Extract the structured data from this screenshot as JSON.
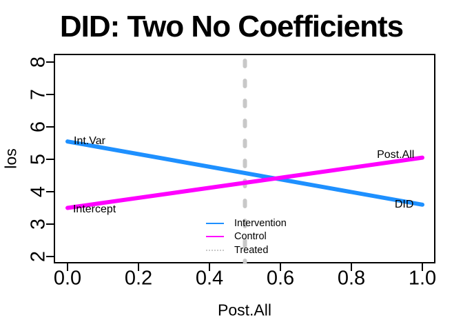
{
  "title": "DID: Two No Coefficients",
  "colors": {
    "intervention": "#1E90FF",
    "control": "#FF00FF",
    "treated": "#C8C8C8",
    "axis": "#000000",
    "background": "#FFFFFF"
  },
  "chart_data": {
    "type": "line",
    "title": "DID: Two No Coefficients",
    "xlabel": "Post.All",
    "ylabel": "los",
    "xlim": [
      -0.04,
      1.04
    ],
    "ylim": [
      1.76,
      8.24
    ],
    "grid": false,
    "x_ticks": [
      {
        "value": 0.0,
        "label": "0.0"
      },
      {
        "value": 0.2,
        "label": "0.2"
      },
      {
        "value": 0.4,
        "label": "0.4"
      },
      {
        "value": 0.6,
        "label": "0.6"
      },
      {
        "value": 0.8,
        "label": "0.8"
      },
      {
        "value": 1.0,
        "label": "1.0"
      }
    ],
    "y_ticks": [
      {
        "value": 8,
        "label": "8"
      },
      {
        "value": 7,
        "label": "7"
      },
      {
        "value": 6,
        "label": "6"
      },
      {
        "value": 5,
        "label": "5"
      },
      {
        "value": 4,
        "label": "4"
      },
      {
        "value": 3,
        "label": "3"
      },
      {
        "value": 2,
        "label": "2"
      }
    ],
    "series": [
      {
        "name": "Intervention",
        "color": "#1E90FF",
        "style": "solid",
        "line_width": 6,
        "x": [
          0,
          1
        ],
        "y": [
          5.55,
          3.6
        ]
      },
      {
        "name": "Control",
        "color": "#FF00FF",
        "style": "solid",
        "line_width": 6,
        "x": [
          0,
          1
        ],
        "y": [
          3.5,
          5.05
        ]
      }
    ],
    "vline": {
      "name": "Treated",
      "x": 0.5,
      "color": "#C8C8C8",
      "style": "dotted",
      "line_width": 6
    },
    "annotations": [
      {
        "text": "Int.Var",
        "x": 0.0175,
        "y": 5.55
      },
      {
        "text": "Intercept",
        "x": 0.0155,
        "y": 3.44
      },
      {
        "text": "Post.All",
        "x": 0.872,
        "y": 5.12
      },
      {
        "text": "DID",
        "x": 0.922,
        "y": 3.6
      }
    ],
    "legend": {
      "position": "inside-bottom-center",
      "border": false,
      "entries": [
        {
          "label": "Intervention",
          "color": "#1E90FF",
          "line": "solid"
        },
        {
          "label": "Control",
          "color": "#FF00FF",
          "line": "solid"
        },
        {
          "label": "Treated",
          "color": "#C8C8C8",
          "line": "dotted"
        }
      ]
    }
  }
}
